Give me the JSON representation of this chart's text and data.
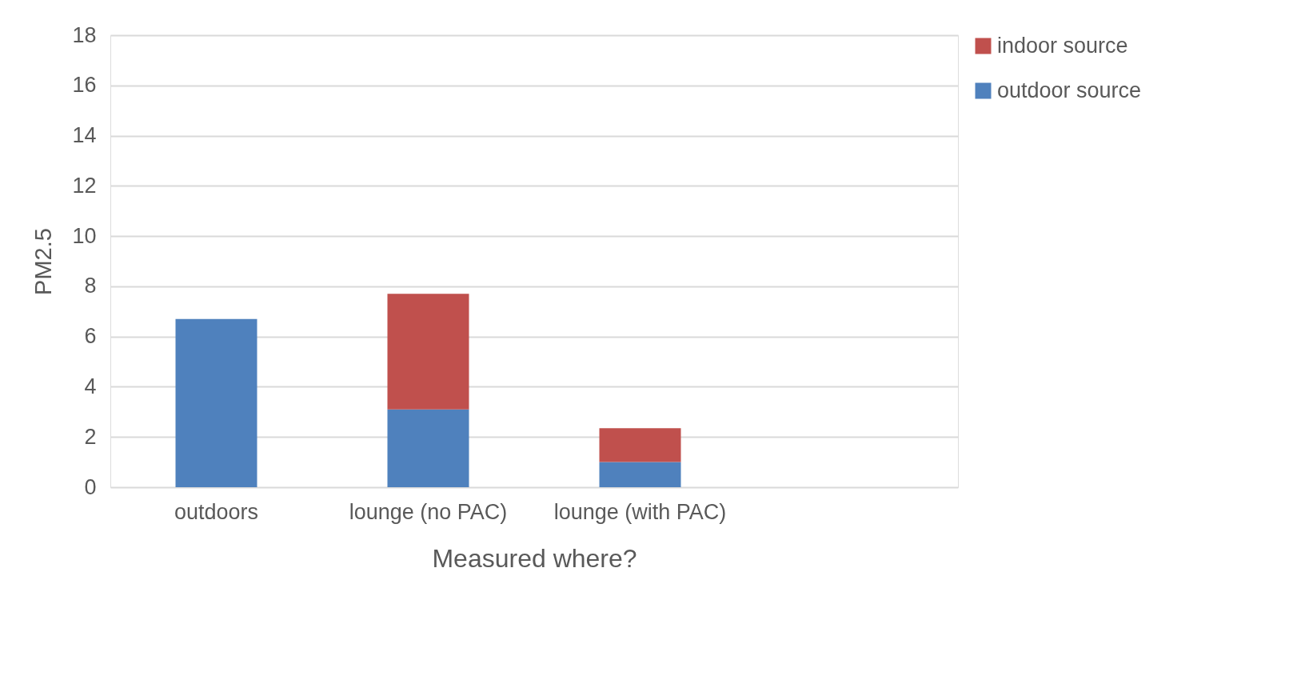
{
  "chart_data": {
    "type": "bar",
    "stacked": true,
    "xlabel": "Measured where?",
    "ylabel": "PM2.5",
    "categories": [
      "outdoors",
      "lounge (no PAC)",
      "lounge (with PAC)",
      null
    ],
    "series": [
      {
        "name": "outdoor source",
        "color": "#4f81bd",
        "values": [
          6.7,
          3.1,
          1.0,
          null
        ]
      },
      {
        "name": "indoor source",
        "color": "#c0504d",
        "values": [
          null,
          4.6,
          1.35,
          null
        ]
      }
    ],
    "ylim": [
      0,
      18
    ],
    "yticks": [
      0,
      2,
      4,
      6,
      8,
      10,
      12,
      14,
      16,
      18
    ],
    "grid": "y",
    "legend": "right"
  }
}
